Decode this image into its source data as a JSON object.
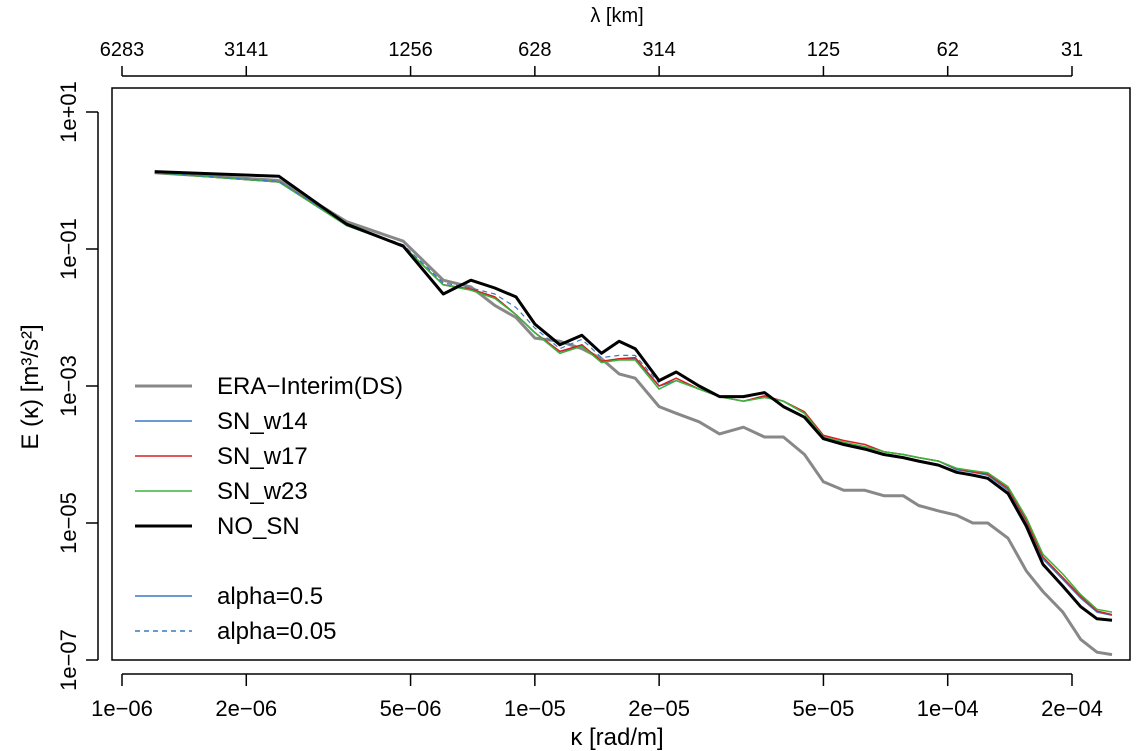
{
  "chart_data": {
    "type": "line",
    "x_scale": "log",
    "y_scale": "log",
    "xlabel": "κ [rad/m]",
    "ylabel": "E (κ)  [m³/s²]",
    "top_axis_label": "λ [km]",
    "xlim": [
      1e-06,
      0.00025
    ],
    "ylim": [
      1e-07,
      10
    ],
    "x_ticks": [
      {
        "value": 1e-06,
        "label": "1e−06"
      },
      {
        "value": 2e-06,
        "label": "2e−06"
      },
      {
        "value": 5e-06,
        "label": "5e−06"
      },
      {
        "value": 1e-05,
        "label": "1e−05"
      },
      {
        "value": 2e-05,
        "label": "2e−05"
      },
      {
        "value": 5e-05,
        "label": "5e−05"
      },
      {
        "value": 0.0001,
        "label": "1e−04"
      },
      {
        "value": 0.0002,
        "label": "2e−04"
      }
    ],
    "top_ticks": [
      {
        "value": 1e-06,
        "label": "6283"
      },
      {
        "value": 2e-06,
        "label": "3141"
      },
      {
        "value": 5e-06,
        "label": "1256"
      },
      {
        "value": 1e-05,
        "label": "628"
      },
      {
        "value": 2e-05,
        "label": "314"
      },
      {
        "value": 5e-05,
        "label": "125"
      },
      {
        "value": 0.0001,
        "label": "62"
      },
      {
        "value": 0.0002,
        "label": "31"
      }
    ],
    "y_ticks": [
      {
        "value": 10,
        "label": "1e+01"
      },
      {
        "value": 0.1,
        "label": "1e−01"
      },
      {
        "value": 0.001,
        "label": "1e−03"
      },
      {
        "value": 1e-05,
        "label": "1e−05"
      },
      {
        "value": 1e-07,
        "label": "1e−07"
      }
    ],
    "grid": false,
    "legend": {
      "position": "bottom-left",
      "entries": [
        {
          "label": "ERA−Interim(DS)",
          "color": "#888888",
          "width": 3,
          "dash": ""
        },
        {
          "label": "SN_w14",
          "color": "#3a78c2",
          "width": 1.5,
          "dash": ""
        },
        {
          "label": "SN_w17",
          "color": "#d62020",
          "width": 1.5,
          "dash": ""
        },
        {
          "label": "SN_w23",
          "color": "#3cb43c",
          "width": 1.5,
          "dash": ""
        },
        {
          "label": "NO_SN",
          "color": "#000000",
          "width": 3,
          "dash": ""
        },
        {
          "label": "",
          "color": "",
          "width": 0,
          "dash": ""
        },
        {
          "label": "alpha=0.5",
          "color": "#3a78c2",
          "width": 1.5,
          "dash": ""
        },
        {
          "label": "alpha=0.05",
          "color": "#3a78c2",
          "width": 1.5,
          "dash": "5,4"
        }
      ]
    },
    "series": [
      {
        "name": "ERA−Interim(DS)",
        "color": "#888888",
        "width": 3,
        "dash": "",
        "x": [
          1.2e-06,
          2.4e-06,
          3.5e-06,
          4.8e-06,
          6e-06,
          7e-06,
          8e-06,
          9e-06,
          1e-05,
          1.15e-05,
          1.3e-05,
          1.45e-05,
          1.6e-05,
          1.75e-05,
          2e-05,
          2.2e-05,
          2.5e-05,
          2.8e-05,
          3.2e-05,
          3.6e-05,
          4e-05,
          4.5e-05,
          5e-05,
          5.6e-05,
          6.3e-05,
          7e-05,
          7.8e-05,
          8.5e-05,
          9.5e-05,
          0.000105,
          0.000115,
          0.000125,
          0.00014,
          0.000155,
          0.00017,
          0.00019,
          0.00021,
          0.00023,
          0.00025
        ],
        "y": [
          1.3,
          1.0,
          0.25,
          0.13,
          0.035,
          0.028,
          0.015,
          0.01,
          0.005,
          0.0045,
          0.0035,
          0.0025,
          0.0015,
          0.0013,
          0.0005,
          0.0004,
          0.0003,
          0.0002,
          0.00025,
          0.00018,
          0.00018,
          0.0001,
          4e-05,
          3e-05,
          3e-05,
          2.5e-05,
          2.5e-05,
          1.8e-05,
          1.5e-05,
          1.3e-05,
          1e-05,
          1e-05,
          6e-06,
          2e-06,
          1e-06,
          5e-07,
          2e-07,
          1.3e-07,
          1.2e-07
        ]
      },
      {
        "name": "SN_w14",
        "color": "#3a78c2",
        "width": 1.5,
        "dash": "",
        "x": [
          1.2e-06,
          2.4e-06,
          3.5e-06,
          4.8e-06,
          6e-06,
          7e-06,
          8e-06,
          9e-06,
          1e-05,
          1.15e-05,
          1.3e-05,
          1.45e-05,
          1.6e-05,
          1.75e-05,
          2e-05,
          2.2e-05,
          2.5e-05,
          2.8e-05,
          3.2e-05,
          3.6e-05,
          4e-05,
          4.5e-05,
          5e-05,
          5.6e-05,
          6.3e-05,
          7e-05,
          7.8e-05,
          8.5e-05,
          9.5e-05,
          0.000105,
          0.000115,
          0.000125,
          0.00014,
          0.000155,
          0.00017,
          0.00019,
          0.00021,
          0.00023,
          0.00025
        ],
        "y": [
          1.3,
          0.95,
          0.22,
          0.11,
          0.03,
          0.025,
          0.02,
          0.011,
          0.006,
          0.003,
          0.004,
          0.0022,
          0.0025,
          0.0025,
          0.001,
          0.0012,
          0.0009,
          0.0007,
          0.0006,
          0.0007,
          0.0006,
          0.0004,
          0.00018,
          0.00015,
          0.00013,
          0.00011,
          0.0001,
          9e-05,
          8e-05,
          6e-05,
          5.5e-05,
          5e-05,
          3e-05,
          1e-05,
          3e-06,
          1.5e-06,
          8e-07,
          5e-07,
          4.5e-07
        ]
      },
      {
        "name": "SN_w17",
        "color": "#d62020",
        "width": 1.5,
        "dash": "",
        "x": [
          1.2e-06,
          2.4e-06,
          3.5e-06,
          4.8e-06,
          6e-06,
          7e-06,
          8e-06,
          9e-06,
          1e-05,
          1.15e-05,
          1.3e-05,
          1.45e-05,
          1.6e-05,
          1.75e-05,
          2e-05,
          2.2e-05,
          2.5e-05,
          2.8e-05,
          3.2e-05,
          3.6e-05,
          4e-05,
          4.5e-05,
          5e-05,
          5.6e-05,
          6.3e-05,
          7e-05,
          7.8e-05,
          8.5e-05,
          9.5e-05,
          0.000105,
          0.000115,
          0.000125,
          0.00014,
          0.000155,
          0.00017,
          0.00019,
          0.00021,
          0.00023,
          0.00025
        ],
        "y": [
          1.3,
          0.95,
          0.23,
          0.11,
          0.03,
          0.026,
          0.02,
          0.011,
          0.006,
          0.0032,
          0.004,
          0.0023,
          0.0025,
          0.0026,
          0.001,
          0.0013,
          0.0009,
          0.0007,
          0.0006,
          0.00072,
          0.0006,
          0.00042,
          0.00019,
          0.00016,
          0.00014,
          0.00011,
          0.0001,
          9e-05,
          8e-05,
          6.2e-05,
          5.6e-05,
          5.2e-05,
          3.2e-05,
          1.1e-05,
          3.2e-06,
          1.6e-06,
          8.5e-07,
          5.2e-07,
          4.6e-07
        ]
      },
      {
        "name": "SN_w23",
        "color": "#3cb43c",
        "width": 1.5,
        "dash": "",
        "x": [
          1.2e-06,
          2.4e-06,
          3.5e-06,
          4.8e-06,
          6e-06,
          7e-06,
          8e-06,
          9e-06,
          1e-05,
          1.15e-05,
          1.3e-05,
          1.45e-05,
          1.6e-05,
          1.75e-05,
          2e-05,
          2.2e-05,
          2.5e-05,
          2.8e-05,
          3.2e-05,
          3.6e-05,
          4e-05,
          4.5e-05,
          5e-05,
          5.6e-05,
          6.3e-05,
          7e-05,
          7.8e-05,
          8.5e-05,
          9.5e-05,
          0.000105,
          0.000115,
          0.000125,
          0.00014,
          0.000155,
          0.00017,
          0.00019,
          0.00021,
          0.00023,
          0.00025
        ],
        "y": [
          1.3,
          0.95,
          0.22,
          0.11,
          0.03,
          0.025,
          0.019,
          0.011,
          0.006,
          0.003,
          0.0038,
          0.0022,
          0.0024,
          0.0024,
          0.0009,
          0.0012,
          0.0009,
          0.0007,
          0.0006,
          0.00068,
          0.0006,
          0.0004,
          0.00018,
          0.00015,
          0.00013,
          0.00011,
          0.0001,
          9e-05,
          8e-05,
          6.3e-05,
          5.8e-05,
          5.4e-05,
          3.4e-05,
          1.2e-05,
          3.5e-06,
          1.8e-06,
          9e-07,
          5.5e-07,
          5e-07
        ]
      },
      {
        "name": "alpha=0.05",
        "color": "#3a78c2",
        "width": 1.2,
        "dash": "5,4",
        "x": [
          1.2e-06,
          2.4e-06,
          3.5e-06,
          4.8e-06,
          6e-06,
          7e-06,
          8e-06,
          9e-06,
          1e-05,
          1.15e-05,
          1.3e-05,
          1.45e-05,
          1.6e-05,
          1.75e-05,
          2e-05
        ],
        "y": [
          1.3,
          0.97,
          0.23,
          0.115,
          0.032,
          0.027,
          0.022,
          0.014,
          0.007,
          0.0035,
          0.0048,
          0.0026,
          0.0028,
          0.0028,
          0.0011
        ]
      },
      {
        "name": "NO_SN",
        "color": "#000000",
        "width": 3,
        "dash": "",
        "x": [
          1.2e-06,
          2.4e-06,
          3.5e-06,
          4.8e-06,
          6e-06,
          7e-06,
          8e-06,
          9e-06,
          1e-05,
          1.15e-05,
          1.3e-05,
          1.45e-05,
          1.6e-05,
          1.75e-05,
          2e-05,
          2.2e-05,
          2.5e-05,
          2.8e-05,
          3.2e-05,
          3.6e-05,
          4e-05,
          4.5e-05,
          5e-05,
          5.6e-05,
          6.3e-05,
          7e-05,
          7.8e-05,
          8.5e-05,
          9.5e-05,
          0.000105,
          0.000115,
          0.000125,
          0.00014,
          0.000155,
          0.00017,
          0.00019,
          0.00021,
          0.00023,
          0.00025
        ],
        "y": [
          1.35,
          1.15,
          0.23,
          0.11,
          0.022,
          0.035,
          0.027,
          0.02,
          0.008,
          0.004,
          0.0055,
          0.003,
          0.0045,
          0.0035,
          0.0012,
          0.0016,
          0.001,
          0.0007,
          0.0007,
          0.0008,
          0.0005,
          0.00035,
          0.00017,
          0.00014,
          0.00012,
          0.0001,
          9e-05,
          8e-05,
          7e-05,
          5.5e-05,
          5e-05,
          4.5e-05,
          2.7e-05,
          9e-06,
          2.5e-06,
          1.2e-06,
          6e-07,
          4e-07,
          3.8e-07
        ]
      }
    ]
  }
}
